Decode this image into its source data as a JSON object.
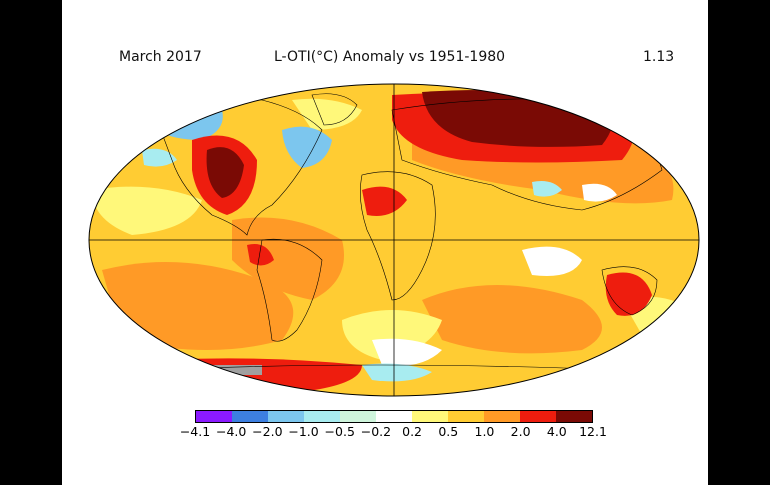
{
  "header": {
    "date": "March 2017",
    "title": "L-OTI(°C) Anomaly vs 1951-1980",
    "global_mean": "1.13"
  },
  "legend": {
    "ticks": [
      "−4.1",
      "−4.0",
      "−2.0",
      "−1.0",
      "−0.5",
      "−0.2",
      "0.2",
      "0.5",
      "1.0",
      "2.0",
      "4.0",
      "12.1"
    ],
    "colors": [
      "#8b1aff",
      "#3d7fe0",
      "#7cc6ee",
      "#a8ecf0",
      "#cff5dc",
      "#ffffff",
      "#fff87a",
      "#ffcc33",
      "#ff9a26",
      "#ee1d0e",
      "#7a0a05"
    ]
  },
  "map_colors": {
    "background": "#ffcc33",
    "strong_warm": "#7a0a05",
    "warm_red": "#ee1d0e",
    "orange": "#ff9a26",
    "light_yellow": "#fff87a",
    "near_zero": "#ffffff",
    "cool_light": "#a8ecf0",
    "cool_blue": "#7cc6ee",
    "missing": "#a0a0a0",
    "outline": "#000000"
  }
}
